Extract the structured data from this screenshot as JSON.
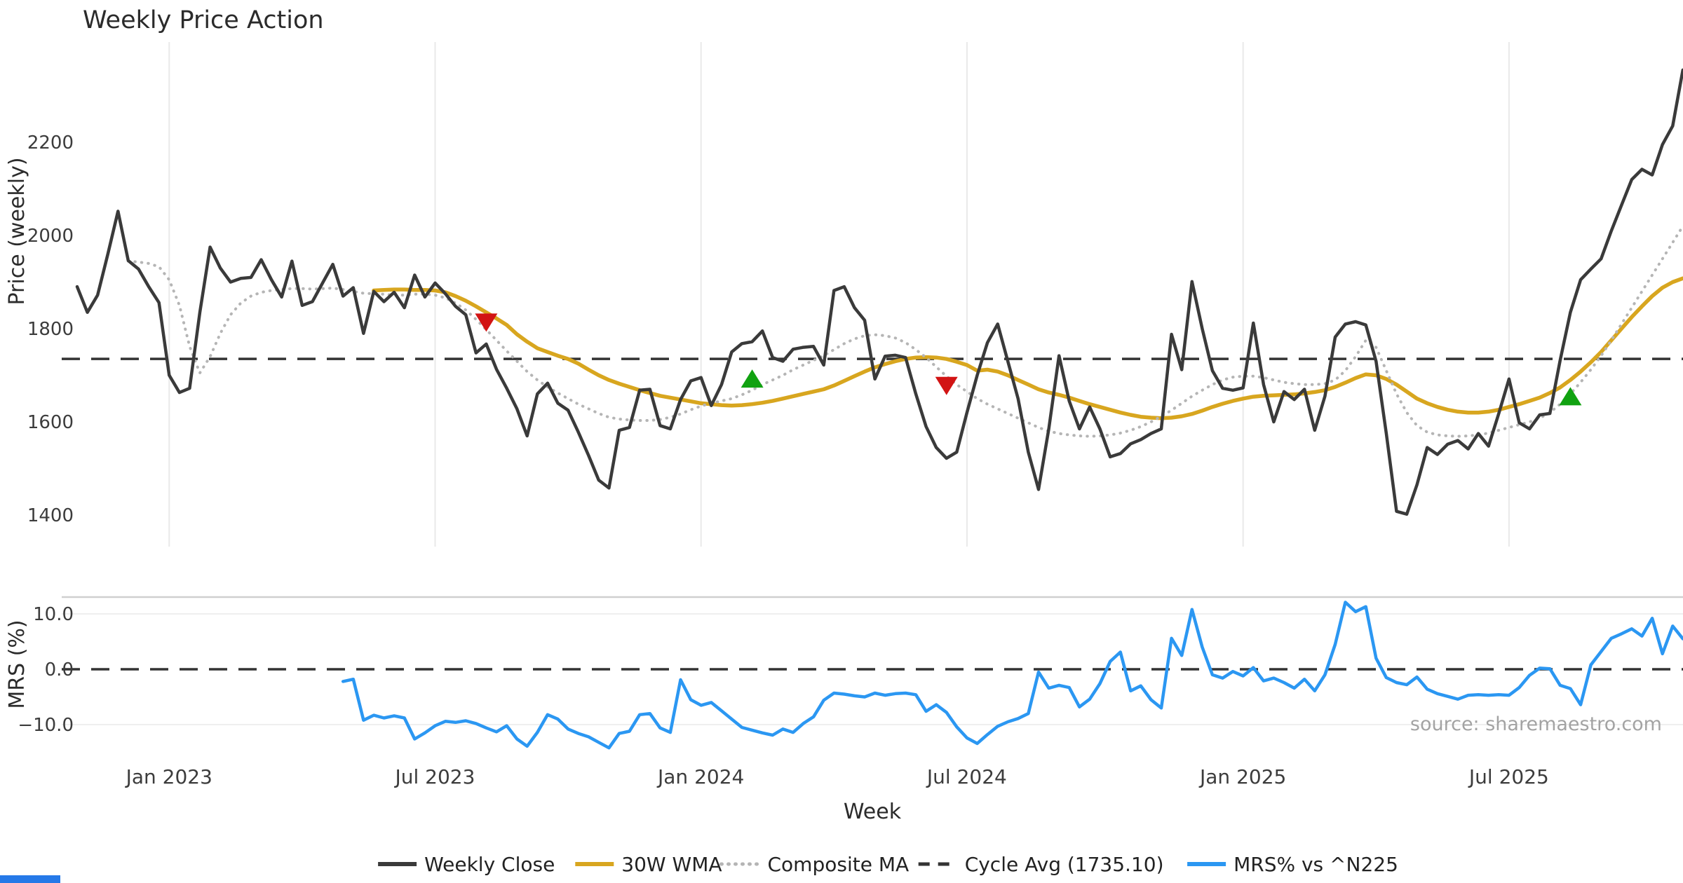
{
  "title": "Weekly Price Action",
  "xlabel": "Week",
  "source": "source: sharemaestro.com",
  "price_panel": {
    "ylabel": "Price (weekly)"
  },
  "mrs_panel": {
    "ylabel": "MRS (%)"
  },
  "colors": {
    "close": "#3a3a3a",
    "wma": "#d8a61f",
    "composite": "#b5b5b5",
    "cycle_dash": "#333333",
    "mrs": "#2b97f2",
    "buy_marker": "#11a211",
    "sell_marker": "#d21414",
    "gridline": "#e9e9e9",
    "panel_border": "#cfcfcf",
    "source_text": "#a3a3a3"
  },
  "legend": {
    "items": [
      {
        "label": "Weekly Close",
        "swatch": "solid",
        "color_key": "close"
      },
      {
        "label": "30W WMA",
        "swatch": "solid",
        "color_key": "wma"
      },
      {
        "label": "Composite MA",
        "swatch": "dotted",
        "color_key": "composite"
      },
      {
        "label": "Cycle Avg (1735.10)",
        "swatch": "dashed",
        "color_key": "cycle_dash"
      },
      {
        "label": "MRS% vs ^N225",
        "swatch": "solid",
        "color_key": "mrs"
      }
    ]
  },
  "chart_data": {
    "type": "line",
    "x_unit": "week",
    "start_date": "2022-10-31",
    "weeks": 158,
    "grid": "vertical-on-price-panel",
    "legend_position": "bottom-center",
    "x_ticks": [
      {
        "week": 9,
        "label": "Jan 2023"
      },
      {
        "week": 35,
        "label": "Jul 2023"
      },
      {
        "week": 61,
        "label": "Jan 2024"
      },
      {
        "week": 87,
        "label": "Jul 2024"
      },
      {
        "week": 114,
        "label": "Jan 2025"
      },
      {
        "week": 140,
        "label": "Jul 2025"
      }
    ],
    "price_axis": {
      "label": "Price (weekly)",
      "ticks": [
        2200,
        2000,
        1800,
        1600,
        1400
      ],
      "ylim": [
        1340,
        2415
      ],
      "cycle_avg": 1735.1
    },
    "mrs_axis": {
      "label": "MRS (%)",
      "ticks": [
        {
          "value": 10,
          "label": "10.0"
        },
        {
          "value": 0,
          "label": "0.0"
        },
        {
          "value": -10,
          "label": "−10.0"
        }
      ],
      "ylim": [
        -16,
        13
      ],
      "zero_line": 0
    },
    "series": [
      {
        "name": "Weekly Close",
        "panel": "price",
        "color_key": "close",
        "style": "solid",
        "width": 4.5,
        "values": [
          1890,
          1835,
          1872,
          1960,
          2052,
          1946,
          1928,
          1890,
          1856,
          1700,
          1663,
          1672,
          1835,
          1975,
          1930,
          1900,
          1908,
          1910,
          1948,
          1905,
          1868,
          1945,
          1850,
          1858,
          1898,
          1938,
          1870,
          1888,
          1790,
          1880,
          1858,
          1878,
          1845,
          1915,
          1868,
          1898,
          1875,
          1848,
          1830,
          1748,
          1767,
          1713,
          1672,
          1628,
          1570,
          1660,
          1683,
          1640,
          1625,
          1578,
          1528,
          1475,
          1458,
          1582,
          1588,
          1668,
          1670,
          1592,
          1585,
          1648,
          1688,
          1695,
          1635,
          1680,
          1750,
          1768,
          1772,
          1795,
          1738,
          1730,
          1756,
          1760,
          1762,
          1722,
          1882,
          1890,
          1845,
          1818,
          1692,
          1741,
          1743,
          1738,
          1660,
          1590,
          1545,
          1522,
          1535,
          1620,
          1700,
          1770,
          1810,
          1730,
          1650,
          1535,
          1455,
          1585,
          1742,
          1645,
          1585,
          1632,
          1585,
          1525,
          1532,
          1553,
          1562,
          1575,
          1585,
          1788,
          1712,
          1901,
          1800,
          1710,
          1672,
          1668,
          1673,
          1812,
          1680,
          1600,
          1665,
          1648,
          1670,
          1582,
          1655,
          1782,
          1810,
          1815,
          1808,
          1730,
          1575,
          1408,
          1402,
          1465,
          1545,
          1530,
          1552,
          1560,
          1542,
          1575,
          1548,
          1618,
          1692,
          1598,
          1585,
          1615,
          1618,
          1732,
          1835,
          1905,
          1928,
          1950,
          2010,
          2065,
          2120,
          2142,
          2130,
          2195,
          2235,
          2355
        ]
      },
      {
        "name": "30W WMA",
        "panel": "price",
        "color_key": "wma",
        "style": "solid",
        "width": 5.5,
        "values": [
          null,
          null,
          null,
          null,
          null,
          null,
          null,
          null,
          null,
          null,
          null,
          null,
          null,
          null,
          null,
          null,
          null,
          null,
          null,
          null,
          null,
          null,
          null,
          null,
          null,
          null,
          null,
          null,
          null,
          1882,
          1883,
          1884,
          1884,
          1883,
          1883,
          1882,
          1878,
          1870,
          1860,
          1848,
          1835,
          1822,
          1808,
          1788,
          1772,
          1758,
          1750,
          1742,
          1735,
          1725,
          1712,
          1700,
          1690,
          1682,
          1675,
          1668,
          1662,
          1656,
          1652,
          1648,
          1644,
          1640,
          1638,
          1636,
          1635,
          1636,
          1638,
          1641,
          1645,
          1650,
          1655,
          1660,
          1665,
          1670,
          1678,
          1688,
          1698,
          1708,
          1717,
          1724,
          1730,
          1735,
          1738,
          1739,
          1738,
          1735,
          1729,
          1722,
          1710,
          1712,
          1708,
          1700,
          1690,
          1680,
          1670,
          1663,
          1658,
          1652,
          1645,
          1638,
          1632,
          1626,
          1620,
          1615,
          1611,
          1609,
          1608,
          1609,
          1612,
          1617,
          1624,
          1632,
          1639,
          1645,
          1650,
          1654,
          1656,
          1657,
          1658,
          1659,
          1661,
          1664,
          1668,
          1675,
          1684,
          1694,
          1702,
          1700,
          1692,
          1680,
          1665,
          1650,
          1640,
          1632,
          1626,
          1622,
          1620,
          1620,
          1622,
          1626,
          1632,
          1638,
          1645,
          1652,
          1662,
          1674,
          1690,
          1708,
          1728,
          1750,
          1775,
          1800,
          1825,
          1848,
          1870,
          1888,
          1900,
          1908
        ]
      },
      {
        "name": "Composite MA",
        "panel": "price",
        "color_key": "composite",
        "style": "dotted",
        "width": 4,
        "values": [
          null,
          null,
          null,
          null,
          null,
          1945,
          1943,
          1940,
          1933,
          1905,
          1850,
          1762,
          1705,
          1740,
          1790,
          1830,
          1855,
          1870,
          1878,
          1882,
          1884,
          1886,
          1886,
          1885,
          1886,
          1887,
          1884,
          1880,
          1876,
          1875,
          1874,
          1872,
          1872,
          1874,
          1874,
          1872,
          1866,
          1855,
          1840,
          1820,
          1798,
          1775,
          1752,
          1730,
          1708,
          1690,
          1675,
          1662,
          1650,
          1638,
          1628,
          1618,
          1610,
          1606,
          1604,
          1603,
          1603,
          1605,
          1610,
          1617,
          1626,
          1634,
          1640,
          1645,
          1650,
          1658,
          1668,
          1680,
          1690,
          1700,
          1712,
          1722,
          1732,
          1742,
          1755,
          1768,
          1778,
          1785,
          1787,
          1785,
          1780,
          1770,
          1755,
          1738,
          1718,
          1698,
          1680,
          1665,
          1650,
          1638,
          1628,
          1618,
          1608,
          1598,
          1588,
          1580,
          1575,
          1572,
          1570,
          1569,
          1570,
          1572,
          1576,
          1582,
          1590,
          1600,
          1612,
          1625,
          1640,
          1655,
          1668,
          1680,
          1690,
          1696,
          1698,
          1698,
          1695,
          1690,
          1685,
          1682,
          1680,
          1680,
          1682,
          1690,
          1710,
          1740,
          1775,
          1760,
          1710,
          1660,
          1620,
          1592,
          1578,
          1572,
          1570,
          1569,
          1570,
          1572,
          1576,
          1582,
          1588,
          1594,
          1600,
          1608,
          1620,
          1638,
          1660,
          1685,
          1712,
          1742,
          1775,
          1810,
          1845,
          1880,
          1915,
          1950,
          1985,
          2020
        ]
      },
      {
        "name": "MRS% vs ^N225",
        "panel": "mrs",
        "color_key": "mrs",
        "style": "solid",
        "width": 4.5,
        "values": [
          null,
          null,
          null,
          null,
          null,
          null,
          null,
          null,
          null,
          null,
          null,
          null,
          null,
          null,
          null,
          null,
          null,
          null,
          null,
          null,
          null,
          null,
          null,
          null,
          null,
          null,
          -2.2,
          -1.8,
          -9.2,
          -8.3,
          -8.8,
          -8.4,
          -8.8,
          -12.6,
          -11.5,
          -10.2,
          -9.4,
          -9.6,
          -9.3,
          -9.8,
          -10.6,
          -11.3,
          -10.2,
          -12.6,
          -13.9,
          -11.4,
          -8.2,
          -9.0,
          -10.8,
          -11.6,
          -12.2,
          -13.2,
          -14.2,
          -11.6,
          -11.2,
          -8.2,
          -8.0,
          -10.6,
          -11.4,
          -1.9,
          -5.5,
          -6.5,
          -6.0,
          -7.5,
          -9.0,
          -10.5,
          -11.0,
          -11.5,
          -11.9,
          -10.8,
          -11.4,
          -9.8,
          -8.6,
          -5.6,
          -4.3,
          -4.5,
          -4.8,
          -5.0,
          -4.3,
          -4.7,
          -4.4,
          -4.3,
          -4.6,
          -7.6,
          -6.4,
          -7.8,
          -10.4,
          -12.4,
          -13.4,
          -11.8,
          -10.3,
          -9.5,
          -8.9,
          -8.0,
          -0.5,
          -3.4,
          -2.9,
          -3.3,
          -6.8,
          -5.4,
          -2.6,
          1.4,
          3.1,
          -3.9,
          -3.0,
          -5.5,
          -7.0,
          5.6,
          2.5,
          10.8,
          4.0,
          -1.0,
          -1.6,
          -0.4,
          -1.2,
          0.3,
          -2.1,
          -1.6,
          -2.4,
          -3.4,
          -1.8,
          -3.9,
          -1.0,
          4.5,
          12.1,
          10.4,
          11.3,
          2.0,
          -1.5,
          -2.4,
          -2.8,
          -1.4,
          -3.6,
          -4.4,
          -4.9,
          -5.4,
          -4.7,
          -4.6,
          -4.7,
          -4.6,
          -4.7,
          -3.3,
          -1.1,
          0.2,
          0.1,
          -2.9,
          -3.5,
          -6.4,
          0.8,
          3.2,
          5.6,
          6.4,
          7.3,
          6.0,
          9.2,
          2.8,
          7.8,
          5.5
        ]
      }
    ],
    "markers": [
      {
        "signal": "sell",
        "week": 40,
        "price": 1813
      },
      {
        "signal": "buy",
        "week": 66,
        "price": 1693
      },
      {
        "signal": "sell",
        "week": 85,
        "price": 1677
      },
      {
        "signal": "buy",
        "week": 146,
        "price": 1655
      }
    ]
  }
}
